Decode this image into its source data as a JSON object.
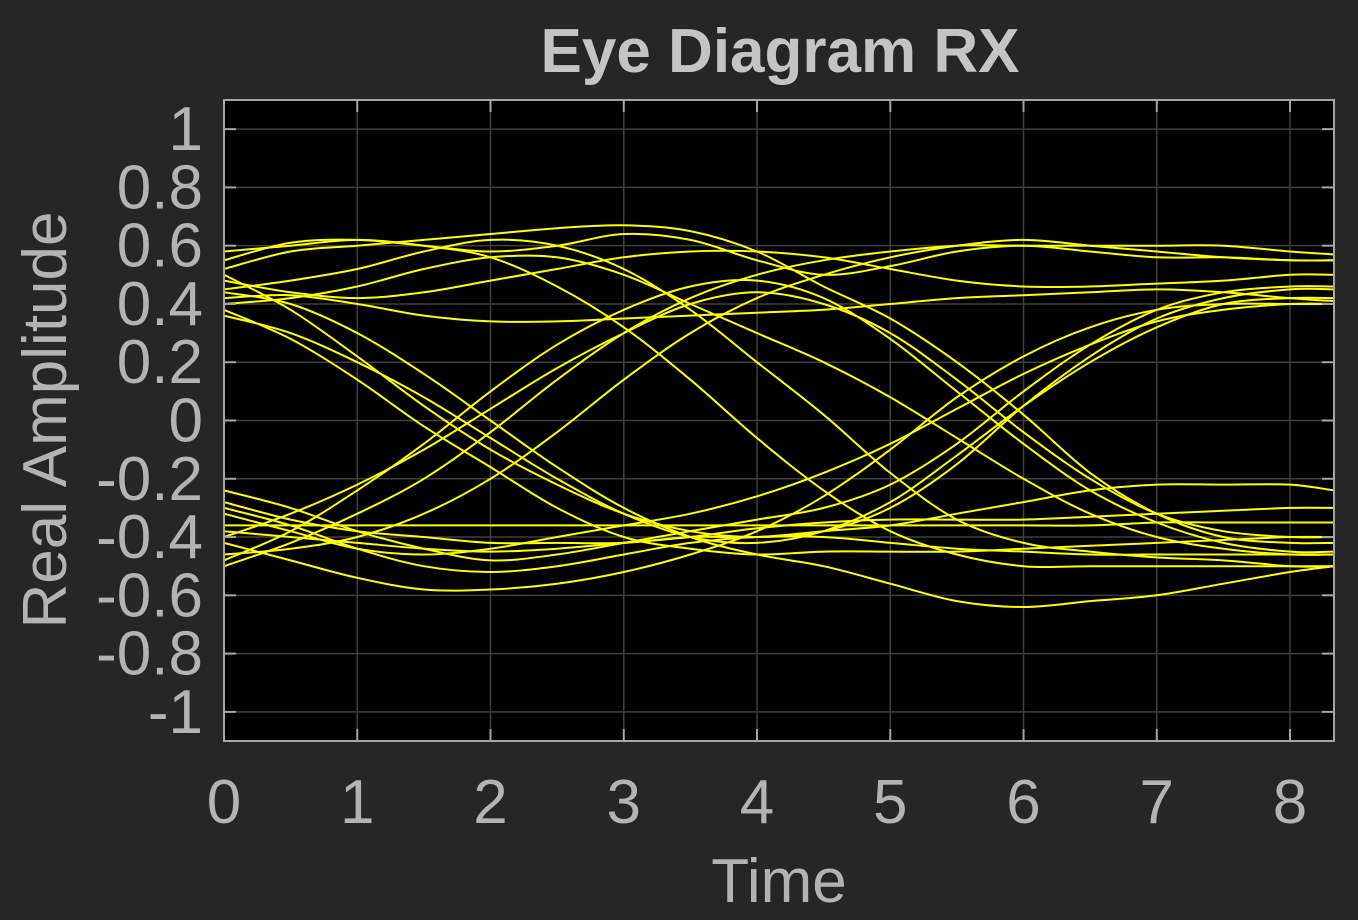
{
  "chart_data": {
    "type": "line",
    "title": "Eye Diagram RX",
    "xlabel": "Time",
    "ylabel": "Real Amplitude",
    "xlim": [
      0,
      8.33
    ],
    "ylim": [
      -1.1,
      1.1
    ],
    "xticks": [
      0,
      1,
      2,
      3,
      4,
      5,
      6,
      7,
      8
    ],
    "yticks": [
      1,
      0.8,
      0.6,
      0.4,
      0.2,
      0,
      -0.2,
      -0.4,
      -0.6,
      -0.8,
      -1
    ],
    "ytick_labels": [
      "1",
      "0.8",
      "0.6",
      "0.4",
      "0.2",
      "0",
      "-0.2",
      "-0.4",
      "-0.6",
      "-0.8",
      "-1"
    ],
    "grid": true,
    "legend": "none",
    "trace_color": "#ffff00",
    "background": "#000000",
    "figure_background": "#262626",
    "x": [
      0,
      0.5,
      1,
      1.5,
      2,
      2.5,
      3,
      3.5,
      4,
      4.5,
      5,
      5.5,
      6,
      6.5,
      7,
      7.5,
      8,
      8.33
    ],
    "series": [
      {
        "values": [
          0.55,
          0.61,
          0.62,
          0.6,
          0.58,
          0.6,
          0.64,
          0.62,
          0.55,
          0.5,
          0.53,
          0.58,
          0.6,
          0.58,
          0.56,
          0.56,
          0.55,
          0.55
        ]
      },
      {
        "values": [
          0.52,
          0.58,
          0.6,
          0.62,
          0.64,
          0.66,
          0.67,
          0.65,
          0.58,
          0.46,
          0.35,
          0.2,
          0.02,
          -0.18,
          -0.32,
          -0.4,
          -0.42,
          -0.42
        ]
      },
      {
        "values": [
          0.45,
          0.48,
          0.52,
          0.58,
          0.62,
          0.6,
          0.52,
          0.38,
          0.2,
          0.02,
          -0.18,
          -0.34,
          -0.42,
          -0.45,
          -0.47,
          -0.48,
          -0.5,
          -0.5
        ]
      },
      {
        "values": [
          0.42,
          0.43,
          0.4,
          0.36,
          0.34,
          0.34,
          0.35,
          0.36,
          0.37,
          0.38,
          0.4,
          0.42,
          0.43,
          0.44,
          0.45,
          0.44,
          0.42,
          0.41
        ]
      },
      {
        "values": [
          0.38,
          0.28,
          0.14,
          -0.02,
          -0.16,
          -0.3,
          -0.4,
          -0.44,
          -0.46,
          -0.45,
          -0.45,
          -0.45,
          -0.44,
          -0.43,
          -0.42,
          -0.41,
          -0.4,
          -0.4
        ]
      },
      {
        "values": [
          0.5,
          0.38,
          0.22,
          0.05,
          -0.1,
          -0.22,
          -0.32,
          -0.38,
          -0.4,
          -0.38,
          -0.3,
          -0.15,
          0.05,
          0.22,
          0.35,
          0.42,
          0.45,
          0.45
        ]
      },
      {
        "values": [
          0.36,
          0.3,
          0.2,
          0.08,
          -0.06,
          -0.2,
          -0.32,
          -0.4,
          -0.42,
          -0.38,
          -0.28,
          -0.12,
          0.05,
          0.2,
          0.32,
          0.4,
          0.42,
          0.42
        ]
      },
      {
        "values": [
          0.44,
          0.4,
          0.3,
          0.16,
          0.0,
          -0.16,
          -0.3,
          -0.4,
          -0.46,
          -0.5,
          -0.56,
          -0.62,
          -0.64,
          -0.62,
          -0.6,
          -0.56,
          -0.52,
          -0.5
        ]
      },
      {
        "values": [
          -0.5,
          -0.42,
          -0.32,
          -0.2,
          -0.04,
          0.14,
          0.3,
          0.42,
          0.5,
          0.55,
          0.58,
          0.6,
          0.6,
          0.6,
          0.6,
          0.6,
          0.58,
          0.57
        ]
      },
      {
        "values": [
          -0.48,
          -0.38,
          -0.24,
          -0.08,
          0.1,
          0.26,
          0.38,
          0.46,
          0.48,
          0.42,
          0.28,
          0.1,
          -0.08,
          -0.24,
          -0.35,
          -0.42,
          -0.45,
          -0.45
        ]
      },
      {
        "values": [
          -0.4,
          -0.32,
          -0.22,
          -0.1,
          0.04,
          0.18,
          0.3,
          0.4,
          0.44,
          0.4,
          0.3,
          0.14,
          -0.04,
          -0.2,
          -0.32,
          -0.38,
          -0.4,
          -0.4
        ]
      },
      {
        "values": [
          -0.46,
          -0.44,
          -0.4,
          -0.32,
          -0.2,
          -0.04,
          0.14,
          0.3,
          0.42,
          0.5,
          0.56,
          0.6,
          0.62,
          0.6,
          0.58,
          0.56,
          0.55,
          0.55
        ]
      },
      {
        "values": [
          -0.36,
          -0.36,
          -0.36,
          -0.36,
          -0.36,
          -0.36,
          -0.36,
          -0.36,
          -0.36,
          -0.36,
          -0.36,
          -0.36,
          -0.36,
          -0.36,
          -0.35,
          -0.35,
          -0.35,
          -0.35
        ]
      },
      {
        "values": [
          -0.38,
          -0.4,
          -0.42,
          -0.44,
          -0.45,
          -0.44,
          -0.42,
          -0.4,
          -0.37,
          -0.35,
          -0.34,
          -0.34,
          -0.34,
          -0.33,
          -0.32,
          -0.31,
          -0.3,
          -0.3
        ]
      },
      {
        "values": [
          -0.3,
          -0.36,
          -0.44,
          -0.5,
          -0.52,
          -0.5,
          -0.46,
          -0.42,
          -0.4,
          -0.4,
          -0.42,
          -0.44,
          -0.45,
          -0.46,
          -0.46,
          -0.46,
          -0.46,
          -0.46
        ]
      },
      {
        "values": [
          -0.42,
          -0.48,
          -0.54,
          -0.58,
          -0.58,
          -0.56,
          -0.52,
          -0.46,
          -0.38,
          -0.26,
          -0.1,
          0.08,
          0.22,
          0.32,
          0.38,
          0.4,
          0.4,
          0.4
        ]
      },
      {
        "values": [
          -0.32,
          -0.38,
          -0.44,
          -0.46,
          -0.44,
          -0.4,
          -0.36,
          -0.32,
          -0.26,
          -0.18,
          -0.08,
          0.04,
          0.16,
          0.26,
          0.34,
          0.38,
          0.4,
          0.4
        ]
      },
      {
        "values": [
          -0.24,
          -0.3,
          -0.38,
          -0.44,
          -0.48,
          -0.46,
          -0.42,
          -0.38,
          -0.34,
          -0.3,
          -0.22,
          -0.08,
          0.1,
          0.26,
          0.38,
          0.44,
          0.46,
          0.46
        ]
      },
      {
        "values": [
          0.58,
          0.6,
          0.62,
          0.6,
          0.56,
          0.46,
          0.32,
          0.14,
          -0.06,
          -0.24,
          -0.38,
          -0.46,
          -0.5,
          -0.5,
          -0.5,
          -0.5,
          -0.5,
          -0.5
        ]
      },
      {
        "values": [
          0.48,
          0.44,
          0.42,
          0.44,
          0.48,
          0.52,
          0.56,
          0.58,
          0.58,
          0.56,
          0.52,
          0.48,
          0.46,
          0.46,
          0.47,
          0.48,
          0.5,
          0.5
        ]
      },
      {
        "values": [
          -0.28,
          -0.34,
          -0.38,
          -0.4,
          -0.42,
          -0.42,
          -0.42,
          -0.4,
          -0.4,
          -0.38,
          -0.36,
          -0.32,
          -0.28,
          -0.24,
          -0.22,
          -0.22,
          -0.22,
          -0.24
        ]
      },
      {
        "values": [
          0.4,
          0.42,
          0.46,
          0.52,
          0.56,
          0.56,
          0.5,
          0.4,
          0.3,
          0.2,
          0.08,
          -0.06,
          -0.2,
          -0.32,
          -0.4,
          -0.44,
          -0.46,
          -0.46
        ]
      }
    ]
  }
}
